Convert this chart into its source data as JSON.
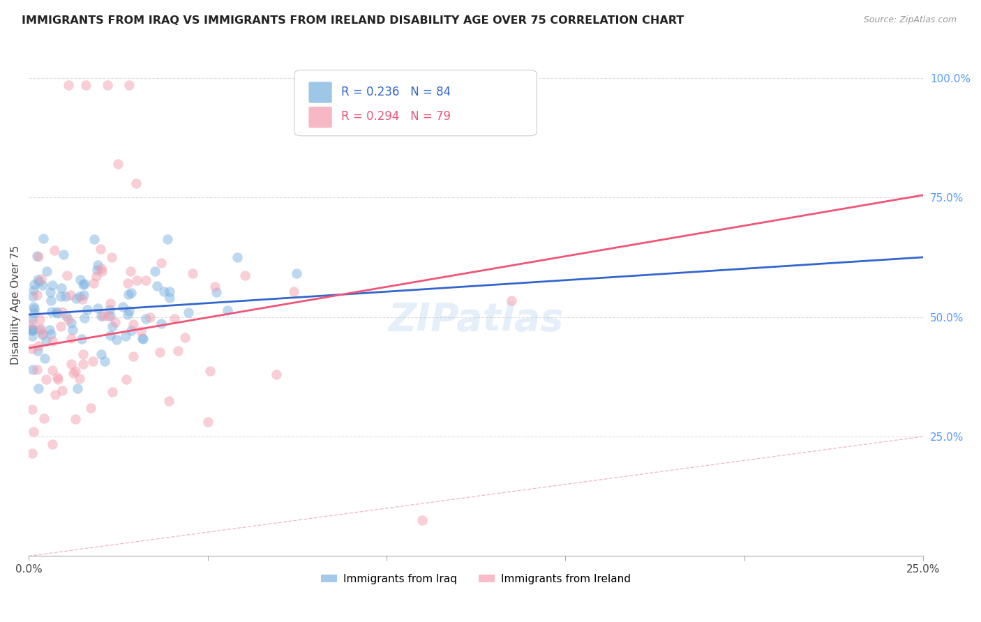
{
  "title": "IMMIGRANTS FROM IRAQ VS IMMIGRANTS FROM IRELAND DISABILITY AGE OVER 75 CORRELATION CHART",
  "source": "Source: ZipAtlas.com",
  "ylabel": "Disability Age Over 75",
  "legend_iraq": "Immigrants from Iraq",
  "legend_ireland": "Immigrants from Ireland",
  "R_iraq": 0.236,
  "N_iraq": 84,
  "R_ireland": 0.294,
  "N_ireland": 79,
  "xmin": 0.0,
  "xmax": 0.25,
  "ymin": 0.0,
  "ymax": 1.05,
  "iraq_color": "#7EB3E0",
  "ireland_color": "#F4A0B0",
  "iraq_line_color": "#3366CC",
  "ireland_line_color": "#EE5577",
  "diagonal_color": "#F0BBCC",
  "background_color": "#FFFFFF",
  "grid_color": "#DDDDDD",
  "right_tick_color": "#5599FF",
  "watermark": "ZIPatlas",
  "iraq_line_x0": 0.0,
  "iraq_line_x1": 0.25,
  "iraq_line_y0": 0.505,
  "iraq_line_y1": 0.625,
  "ireland_line_x0": 0.0,
  "ireland_line_x1": 0.25,
  "ireland_line_y0": 0.435,
  "ireland_line_y1": 0.755
}
